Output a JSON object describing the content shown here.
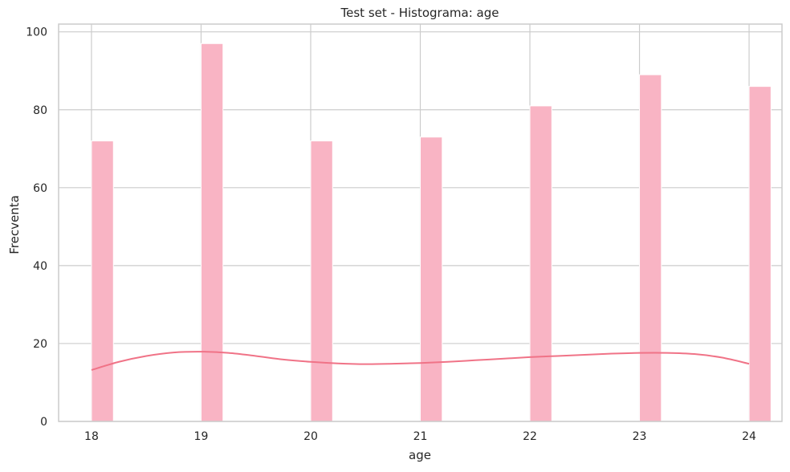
{
  "chart_data": {
    "type": "bar",
    "title": "Test set - Histograma: age",
    "xlabel": "age",
    "ylabel": "Frecventa",
    "x_ticks": [
      18,
      19,
      20,
      21,
      22,
      23,
      24
    ],
    "y_ticks": [
      0,
      20,
      40,
      60,
      80,
      100
    ],
    "xlim": [
      17.7,
      24.3
    ],
    "ylim": [
      0,
      102
    ],
    "grid": true,
    "bars": [
      {
        "x": 18,
        "value": 72
      },
      {
        "x": 19,
        "value": 97
      },
      {
        "x": 20,
        "value": 72
      },
      {
        "x": 21,
        "value": 73
      },
      {
        "x": 22,
        "value": 81
      },
      {
        "x": 23,
        "value": 89
      },
      {
        "x": 24,
        "value": 86
      }
    ],
    "kde": {
      "x": [
        18.0,
        18.25,
        18.5,
        18.75,
        19.0,
        19.25,
        19.5,
        19.75,
        20.0,
        20.25,
        20.5,
        20.75,
        21.0,
        21.25,
        21.5,
        21.75,
        22.0,
        22.25,
        22.5,
        22.75,
        23.0,
        23.25,
        23.5,
        23.75,
        24.0
      ],
      "y": [
        13.2,
        15.3,
        16.8,
        17.7,
        17.9,
        17.6,
        16.8,
        15.9,
        15.3,
        14.9,
        14.7,
        14.8,
        15.0,
        15.3,
        15.7,
        16.1,
        16.5,
        16.8,
        17.1,
        17.4,
        17.6,
        17.6,
        17.3,
        16.4,
        14.8
      ]
    },
    "colors": {
      "bar": "#f9b4c4",
      "kde": "#f07387",
      "grid": "#cccccc",
      "spine": "#cccccc",
      "text": "#262626"
    }
  }
}
